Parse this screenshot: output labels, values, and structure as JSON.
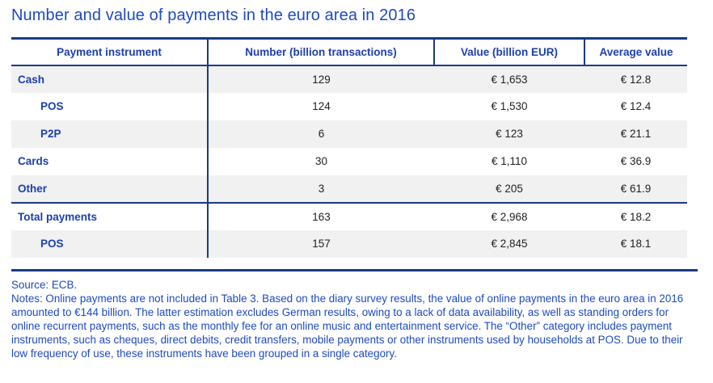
{
  "title": "Number and value of payments in the euro area in 2016",
  "table": {
    "columns": [
      "Payment instrument",
      "Number (billion transactions)",
      "Value (billion EUR)",
      "Average value"
    ],
    "rows": [
      {
        "label": "Cash",
        "indent": false,
        "total_rule": false,
        "number": "129",
        "value": "€ 1,653",
        "average": "€ 12.8"
      },
      {
        "label": "POS",
        "indent": true,
        "total_rule": false,
        "number": "124",
        "value": "€ 1,530",
        "average": "€ 12.4"
      },
      {
        "label": "P2P",
        "indent": true,
        "total_rule": false,
        "number": "6",
        "value": "€ 123",
        "average": "€ 21.1"
      },
      {
        "label": "Cards",
        "indent": false,
        "total_rule": false,
        "number": "30",
        "value": "€ 1,110",
        "average": "€ 36.9"
      },
      {
        "label": "Other",
        "indent": false,
        "total_rule": false,
        "number": "3",
        "value": "€ 205",
        "average": "€ 61.9"
      },
      {
        "label": "Total payments",
        "indent": false,
        "total_rule": true,
        "number": "163",
        "value": "€ 2,968",
        "average": "€ 18.2"
      },
      {
        "label": "POS",
        "indent": true,
        "total_rule": false,
        "number": "157",
        "value": "€ 2,845",
        "average": "€ 18.1"
      }
    ]
  },
  "source": "Source: ECB.",
  "notes": "Notes: Online payments are not included in Table 3. Based on the diary survey results, the value of online payments in the euro area in 2016 amounted to €144 billion. The latter estimation excludes German results, owing to a lack of data availability, as well as standing orders for online recurrent payments, such as the monthly fee for an online music and entertainment service. The “Other” category includes payment instruments, such as cheques, direct debits, credit transfers, mobile payments or other instruments used by households at POS. Due to their low frequency of use, these instruments have been grouped in a single category.",
  "colors": {
    "border_navy": "#1a3a85",
    "heading_blue": "#1d4ac0",
    "label_blue": "#1c3fae",
    "number_text": "#1f1f1f",
    "row_shade": "#f1f1f1"
  }
}
